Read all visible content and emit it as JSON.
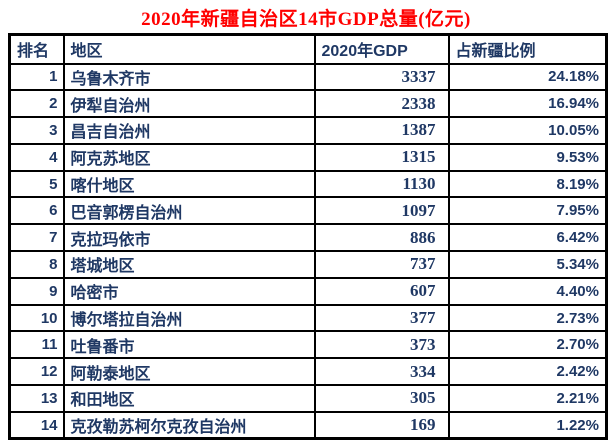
{
  "title": "2020年新疆自治区14市GDP总量(亿元)",
  "colors": {
    "title_red": "#FF0000",
    "text_navy": "#1F3864",
    "border_black": "#000000",
    "background": "#FFFFFF"
  },
  "table": {
    "headers": [
      "排名",
      "地区",
      "2020年GDP",
      "占新疆比例"
    ],
    "rows": [
      [
        "1",
        "乌鲁木齐市",
        "3337",
        "24.18%"
      ],
      [
        "2",
        "伊犁自治州",
        "2338",
        "16.94%"
      ],
      [
        "3",
        "昌吉自治州",
        "1387",
        "10.05%"
      ],
      [
        "4",
        "阿克苏地区",
        "1315",
        "9.53%"
      ],
      [
        "5",
        "喀什地区",
        "1130",
        "8.19%"
      ],
      [
        "6",
        "巴音郭楞自治州",
        "1097",
        "7.95%"
      ],
      [
        "7",
        "克拉玛依市",
        "886",
        "6.42%"
      ],
      [
        "8",
        "塔城地区",
        "737",
        "5.34%"
      ],
      [
        "9",
        "哈密市",
        "607",
        "4.40%"
      ],
      [
        "10",
        "博尔塔拉自治州",
        "377",
        "2.73%"
      ],
      [
        "11",
        "吐鲁番市",
        "373",
        "2.70%"
      ],
      [
        "12",
        "阿勒泰地区",
        "334",
        "2.42%"
      ],
      [
        "13",
        "和田地区",
        "305",
        "2.21%"
      ],
      [
        "14",
        "克孜勒苏柯尔克孜自治州",
        "169",
        "1.22%"
      ]
    ]
  },
  "chart_data": {
    "type": "table",
    "title": "2020年新疆自治区14市GDP总量(亿元)",
    "columns": [
      "排名",
      "地区",
      "2020年GDP",
      "占新疆比例"
    ],
    "regions": [
      "乌鲁木齐市",
      "伊犁自治州",
      "昌吉自治州",
      "阿克苏地区",
      "喀什地区",
      "巴音郭楞自治州",
      "克拉玛依市",
      "塔城地区",
      "哈密市",
      "博尔塔拉自治州",
      "吐鲁番市",
      "阿勒泰地区",
      "和田地区",
      "克孜勒苏柯尔克孜自治州"
    ],
    "gdp_values": [
      3337,
      2338,
      1387,
      1315,
      1130,
      1097,
      886,
      737,
      607,
      377,
      373,
      334,
      305,
      169
    ],
    "share_percent": [
      24.18,
      16.94,
      10.05,
      9.53,
      8.19,
      7.95,
      6.42,
      5.34,
      4.4,
      2.73,
      2.7,
      2.42,
      2.21,
      1.22
    ]
  }
}
